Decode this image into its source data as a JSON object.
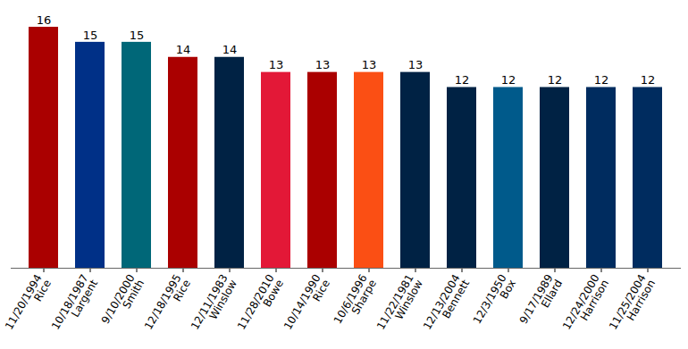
{
  "chart_data": {
    "type": "bar",
    "categories": [
      "11/20/1994\nRice",
      "10/18/1987\nLargent",
      "9/10/2000\nSmith",
      "12/18/1995\nRice",
      "12/11/1983\nWinslow",
      "11/28/2010\nBowe",
      "10/14/1990\nRice",
      "10/6/1996\nSharpe",
      "11/22/1981\nWinslow",
      "12/13/2004\nBennett",
      "12/3/1950\nBox",
      "9/17/1989\nEllard",
      "12/24/2000\nHarrison",
      "11/25/2004\nHarrison"
    ],
    "values": [
      16,
      15,
      15,
      14,
      14,
      13,
      13,
      13,
      13,
      12,
      12,
      12,
      12,
      12
    ],
    "colors": [
      "#aa0000",
      "#003087",
      "#006778",
      "#aa0000",
      "#002244",
      "#e31837",
      "#aa0000",
      "#fb4f14",
      "#002244",
      "#002244",
      "#005a8b",
      "#002244",
      "#002c5f",
      "#002c5f"
    ],
    "ylim": [
      0,
      16
    ],
    "data_labels": true,
    "tick_labels": "x",
    "grid": false
  }
}
